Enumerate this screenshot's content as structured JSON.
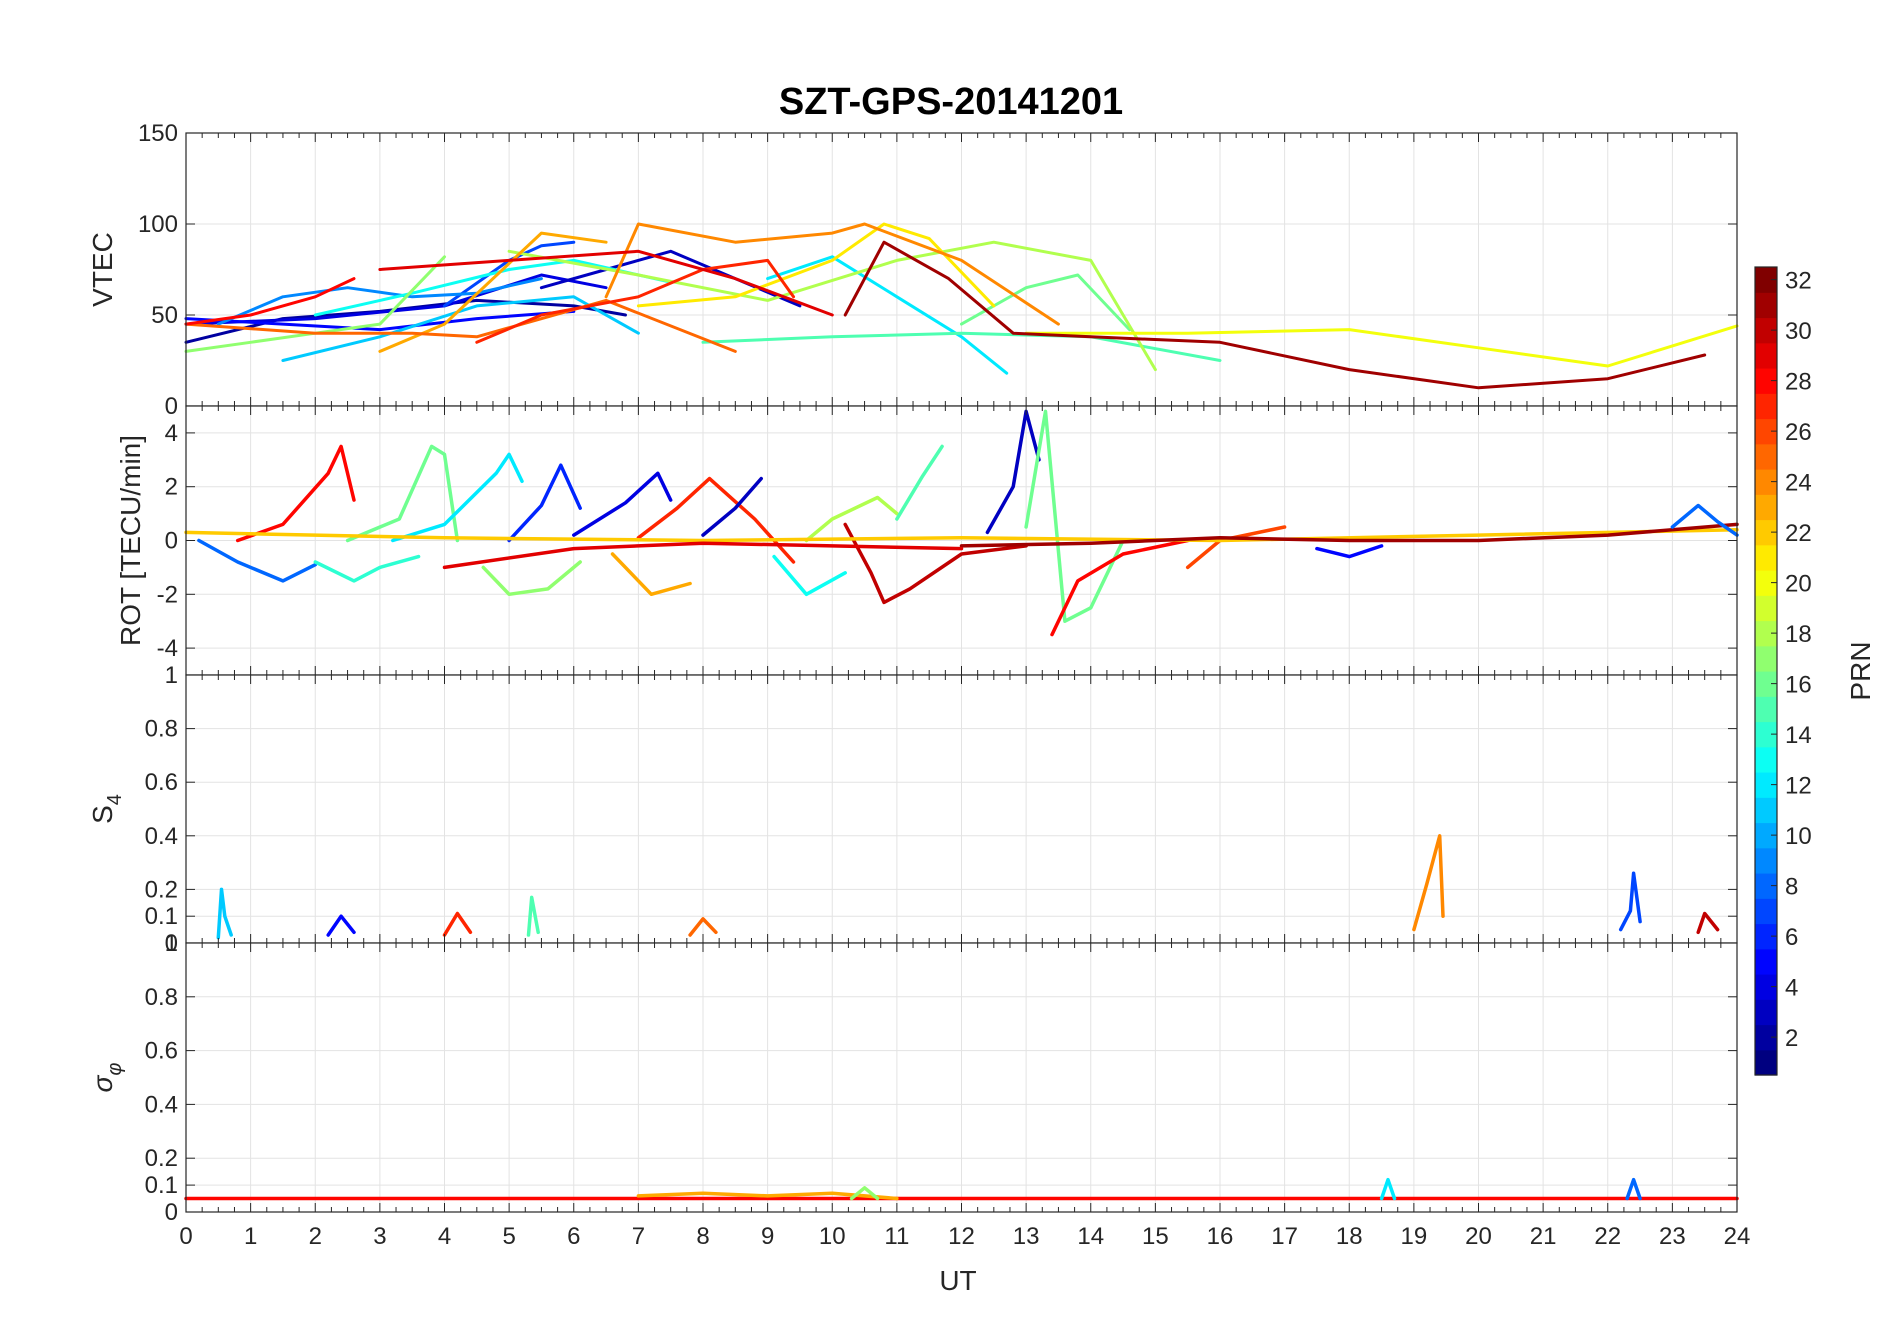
{
  "chart_data": {
    "type": "line",
    "title": "SZT-GPS-20141201",
    "xlabel": "UT",
    "xlim": [
      0,
      24
    ],
    "xticks": [
      0,
      1,
      2,
      3,
      4,
      5,
      6,
      7,
      8,
      9,
      10,
      11,
      12,
      13,
      14,
      15,
      16,
      17,
      18,
      19,
      20,
      21,
      22,
      23,
      24
    ],
    "grid": true,
    "colorbar": {
      "label": "PRN",
      "colormap": "jet",
      "range": [
        1,
        32
      ],
      "ticks": [
        2,
        4,
        6,
        8,
        10,
        12,
        14,
        16,
        18,
        20,
        22,
        24,
        26,
        28,
        30,
        32
      ]
    },
    "panels": [
      {
        "ylabel": "VTEC",
        "ylim": [
          0,
          150
        ],
        "yticks": [
          0,
          50,
          100,
          150
        ],
        "series": [
          {
            "prn": 2,
            "x": [
              0,
              1.5,
              3,
              4.5,
              6,
              6.8
            ],
            "y": [
              35,
              48,
              52,
              58,
              55,
              50
            ]
          },
          {
            "prn": 4,
            "x": [
              0,
              2,
              4,
              5.5,
              6.5
            ],
            "y": [
              45,
              48,
              55,
              72,
              65
            ]
          },
          {
            "prn": 5,
            "x": [
              0,
              1.5,
              3,
              4.5,
              6
            ],
            "y": [
              48,
              45,
              42,
              48,
              52
            ]
          },
          {
            "prn": 3,
            "x": [
              5.5,
              6.5,
              7.5,
              8.5,
              9.5
            ],
            "y": [
              65,
              75,
              85,
              70,
              55
            ]
          },
          {
            "prn": 7,
            "x": [
              4,
              5,
              5.5,
              6
            ],
            "y": [
              55,
              80,
              88,
              90
            ]
          },
          {
            "prn": 9,
            "x": [
              0.5,
              1.5,
              2.5,
              3.5,
              4.5,
              5.5
            ],
            "y": [
              45,
              60,
              65,
              60,
              62,
              70
            ]
          },
          {
            "prn": 11,
            "x": [
              1.5,
              3,
              4.5,
              6,
              7
            ],
            "y": [
              25,
              38,
              55,
              60,
              40
            ]
          },
          {
            "prn": 12,
            "x": [
              9,
              10,
              11,
              12,
              12.7
            ],
            "y": [
              70,
              82,
              60,
              38,
              18
            ]
          },
          {
            "prn": 13,
            "x": [
              2,
              3.5,
              5,
              6,
              7.5
            ],
            "y": [
              50,
              62,
              75,
              80,
              68
            ]
          },
          {
            "prn": 15,
            "x": [
              8,
              10,
              12,
              14,
              16
            ],
            "y": [
              35,
              38,
              40,
              38,
              25
            ]
          },
          {
            "prn": 16,
            "x": [
              12,
              13,
              13.8,
              14.6
            ],
            "y": [
              45,
              65,
              72,
              42
            ]
          },
          {
            "prn": 17,
            "x": [
              0,
              1,
              2,
              3,
              4
            ],
            "y": [
              30,
              35,
              40,
              45,
              82
            ]
          },
          {
            "prn": 18,
            "x": [
              5,
              7,
              9,
              11,
              12.5,
              14,
              15
            ],
            "y": [
              85,
              72,
              58,
              80,
              90,
              80,
              20
            ]
          },
          {
            "prn": 20,
            "x": [
              13,
              15.5,
              18,
              20,
              22,
              24
            ],
            "y": [
              40,
              40,
              42,
              32,
              22,
              44
            ]
          },
          {
            "prn": 21,
            "x": [
              7,
              8.5,
              10,
              10.8,
              11.5,
              12.5
            ],
            "y": [
              55,
              60,
              80,
              100,
              92,
              55
            ]
          },
          {
            "prn": 23,
            "x": [
              3,
              4,
              5.5,
              6.5
            ],
            "y": [
              30,
              45,
              95,
              90
            ]
          },
          {
            "prn": 24,
            "x": [
              6.5,
              7,
              8.5,
              10,
              10.5,
              12,
              13.5
            ],
            "y": [
              60,
              100,
              90,
              95,
              100,
              80,
              45
            ]
          },
          {
            "prn": 25,
            "x": [
              0,
              2,
              3.5,
              4.5,
              6.5,
              8.5
            ],
            "y": [
              45,
              40,
              40,
              38,
              58,
              30
            ]
          },
          {
            "prn": 27,
            "x": [
              4.5,
              5.5,
              7,
              8,
              9,
              9.4
            ],
            "y": [
              35,
              50,
              60,
              75,
              80,
              60
            ]
          },
          {
            "prn": 28,
            "x": [
              0,
              1,
              2,
              2.6
            ],
            "y": [
              45,
              50,
              60,
              70
            ]
          },
          {
            "prn": 29,
            "x": [
              3,
              5,
              7,
              8.5,
              10
            ],
            "y": [
              75,
              80,
              85,
              70,
              50
            ]
          },
          {
            "prn": 31,
            "x": [
              10.2,
              10.8,
              11.8,
              12.8,
              14,
              16,
              18,
              20,
              22,
              23.5
            ],
            "y": [
              50,
              90,
              70,
              40,
              38,
              35,
              20,
              10,
              15,
              28
            ]
          }
        ]
      },
      {
        "ylabel": "ROT [TECU/min]",
        "ylim": [
          -5,
          5
        ],
        "yticks": [
          -4,
          -2,
          0,
          2,
          4
        ],
        "series": [
          {
            "prn": 28,
            "x": [
              0.8,
              1.5,
              2.2,
              2.4,
              2.6
            ],
            "y": [
              0,
              0.6,
              2.5,
              3.5,
              1.5
            ]
          },
          {
            "prn": 16,
            "x": [
              2.5,
              3.3,
              3.8,
              4,
              4.2
            ],
            "y": [
              0,
              0.8,
              3.5,
              3.2,
              0
            ]
          },
          {
            "prn": 12,
            "x": [
              3.2,
              4,
              4.8,
              5,
              5.2
            ],
            "y": [
              0,
              0.6,
              2.5,
              3.2,
              2.2
            ]
          },
          {
            "prn": 6,
            "x": [
              5,
              5.5,
              5.8,
              6.1
            ],
            "y": [
              0,
              1.3,
              2.8,
              1.2
            ]
          },
          {
            "prn": 4,
            "x": [
              6,
              6.8,
              7.3,
              7.5
            ],
            "y": [
              0.2,
              1.4,
              2.5,
              1.5
            ]
          },
          {
            "prn": 27,
            "x": [
              7,
              7.6,
              8.1,
              8.8,
              9.4
            ],
            "y": [
              0.1,
              1.2,
              2.3,
              0.8,
              -0.8
            ]
          },
          {
            "prn": 3,
            "x": [
              8,
              8.5,
              8.9
            ],
            "y": [
              0.2,
              1.2,
              2.3
            ]
          },
          {
            "prn": 18,
            "x": [
              9.6,
              10,
              10.7,
              11
            ],
            "y": [
              0,
              0.8,
              1.6,
              1
            ]
          },
          {
            "prn": 15,
            "x": [
              11,
              11.4,
              11.7
            ],
            "y": [
              0.8,
              2.4,
              3.5
            ]
          },
          {
            "prn": 3,
            "x": [
              12.4,
              12.8,
              13,
              13.2
            ],
            "y": [
              0.3,
              2,
              4.8,
              3
            ]
          },
          {
            "prn": 16,
            "x": [
              13,
              13.3,
              13.6,
              14,
              14.5
            ],
            "y": [
              0.5,
              4.8,
              -3,
              -2.5,
              0
            ]
          },
          {
            "prn": 30,
            "x": [
              10.2,
              10.6,
              10.8,
              11.2,
              12,
              13
            ],
            "y": [
              0.6,
              -1.2,
              -2.3,
              -1.8,
              -0.5,
              -0.2
            ]
          },
          {
            "prn": 28,
            "x": [
              13.4,
              13.8,
              14.5,
              15.5
            ],
            "y": [
              -3.5,
              -1.5,
              -0.5,
              0
            ]
          },
          {
            "prn": 8,
            "x": [
              0.2,
              0.8,
              1.5,
              2
            ],
            "y": [
              0,
              -0.8,
              -1.5,
              -0.9
            ]
          },
          {
            "prn": 14,
            "x": [
              2,
              2.6,
              3,
              3.6
            ],
            "y": [
              -0.8,
              -1.5,
              -1,
              -0.6
            ]
          },
          {
            "prn": 17,
            "x": [
              4.6,
              5,
              5.6,
              6.1
            ],
            "y": [
              -1,
              -2,
              -1.8,
              -0.8
            ]
          },
          {
            "prn": 23,
            "x": [
              6.6,
              7.2,
              7.8
            ],
            "y": [
              -0.5,
              -2,
              -1.6
            ]
          },
          {
            "prn": 13,
            "x": [
              9.1,
              9.6,
              10.2
            ],
            "y": [
              -0.6,
              -2,
              -1.2
            ]
          },
          {
            "prn": 26,
            "x": [
              15.5,
              16,
              17
            ],
            "y": [
              -1,
              0,
              0.5
            ]
          },
          {
            "prn": 5,
            "x": [
              17.5,
              18,
              18.5
            ],
            "y": [
              -0.3,
              -0.6,
              -0.2
            ]
          },
          {
            "prn": 22,
            "x": [
              0,
              4,
              8,
              12,
              16,
              20,
              24
            ],
            "y": [
              0.3,
              0.1,
              0,
              0.1,
              0,
              0.2,
              0.4
            ]
          },
          {
            "prn": 31,
            "x": [
              12,
              14,
              16,
              18,
              20,
              22,
              24
            ],
            "y": [
              -0.2,
              -0.1,
              0.1,
              0,
              0,
              0.2,
              0.6
            ]
          },
          {
            "prn": 8,
            "x": [
              23,
              23.4,
              23.7,
              24
            ],
            "y": [
              0.5,
              1.3,
              0.7,
              0.2
            ]
          },
          {
            "prn": 29,
            "x": [
              4,
              6,
              8,
              10,
              12
            ],
            "y": [
              -1,
              -0.3,
              -0.1,
              -0.2,
              -0.3
            ]
          }
        ]
      },
      {
        "ylabel": "S4",
        "ylim": [
          0,
          1
        ],
        "yticks": [
          0,
          0.1,
          0.2,
          0.4,
          0.6,
          0.8,
          1
        ],
        "series": [
          {
            "prn": 11,
            "x": [
              0.5,
              0.55,
              0.6,
              0.7
            ],
            "y": [
              0.02,
              0.2,
              0.1,
              0.03
            ]
          },
          {
            "prn": 15,
            "x": [
              5.3,
              5.35,
              5.45
            ],
            "y": [
              0.03,
              0.17,
              0.04
            ]
          },
          {
            "prn": 24,
            "x": [
              19,
              19.2,
              19.4,
              19.45
            ],
            "y": [
              0.05,
              0.22,
              0.4,
              0.1
            ]
          },
          {
            "prn": 7,
            "x": [
              22.2,
              22.35,
              22.4,
              22.5
            ],
            "y": [
              0.05,
              0.12,
              0.26,
              0.08
            ]
          },
          {
            "prn": 5,
            "x": [
              2.2,
              2.4,
              2.6
            ],
            "y": [
              0.03,
              0.1,
              0.04
            ]
          },
          {
            "prn": 27,
            "x": [
              4,
              4.2,
              4.4
            ],
            "y": [
              0.03,
              0.11,
              0.04
            ]
          },
          {
            "prn": 30,
            "x": [
              23.4,
              23.5,
              23.7
            ],
            "y": [
              0.04,
              0.11,
              0.05
            ]
          },
          {
            "prn": 25,
            "x": [
              7.8,
              8,
              8.2
            ],
            "y": [
              0.03,
              0.09,
              0.04
            ]
          }
        ]
      },
      {
        "ylabel": "σφ",
        "ylim": [
          0,
          1
        ],
        "yticks": [
          0,
          0.1,
          0.2,
          0.4,
          0.6,
          0.8,
          1
        ],
        "series": [
          {
            "prn": 28,
            "x": [
              0,
              6,
              12,
              18,
              24
            ],
            "y": [
              0.05,
              0.05,
              0.05,
              0.05,
              0.05
            ]
          },
          {
            "prn": 23,
            "x": [
              7,
              8,
              9,
              10,
              11
            ],
            "y": [
              0.06,
              0.07,
              0.06,
              0.07,
              0.05
            ]
          },
          {
            "prn": 12,
            "x": [
              18.5,
              18.6,
              18.7
            ],
            "y": [
              0.05,
              0.12,
              0.05
            ]
          },
          {
            "prn": 8,
            "x": [
              22.3,
              22.4,
              22.5
            ],
            "y": [
              0.05,
              0.12,
              0.05
            ]
          },
          {
            "prn": 17,
            "x": [
              10.3,
              10.5,
              10.7
            ],
            "y": [
              0.05,
              0.09,
              0.05
            ]
          }
        ]
      }
    ]
  }
}
